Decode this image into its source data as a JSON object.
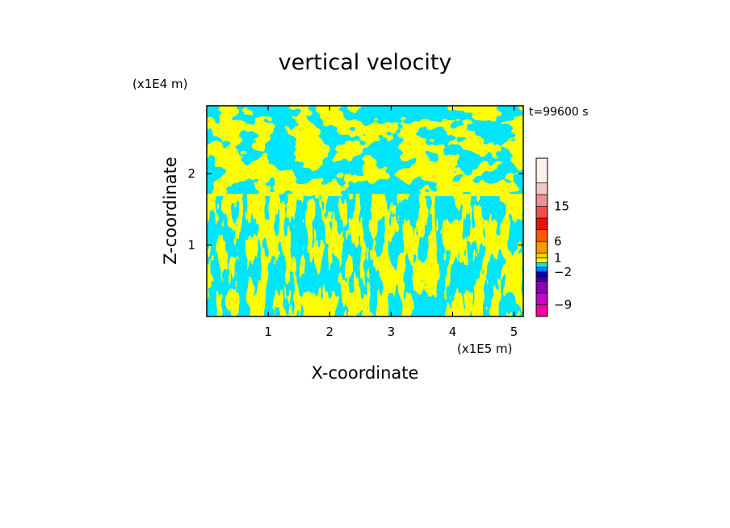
{
  "chart_data": {
    "type": "heatmap",
    "title": "vertical velocity",
    "xlabel": "X-coordinate",
    "ylabel": "Z-coordinate",
    "x_unit": "(x1E5 m)",
    "y_unit": "(x1E4 m)",
    "time_label": "t=99600 s",
    "xlim": [
      0,
      5.15
    ],
    "ylim": [
      0,
      2.95
    ],
    "x_ticks": [
      1,
      2,
      3,
      4,
      5
    ],
    "y_ticks": [
      1,
      2
    ],
    "field": {
      "description_values": "sign of vertical velocity",
      "positive_color": "#ffff00",
      "negative_color": "#00e5ff",
      "dominant_levels": [
        "0 to 1",
        "-1 to 0"
      ]
    },
    "colorbar": {
      "levels": [
        {
          "color": "#ff00a0"
        },
        {
          "color": "#c800c8"
        },
        {
          "color": "#8c00b4"
        },
        {
          "color": "#3c00a0"
        },
        {
          "color": "#0000cc"
        },
        {
          "color": "#0078ff"
        },
        {
          "color": "#00e5ff"
        },
        {
          "color": "#ffff00"
        },
        {
          "color": "#ffd200"
        },
        {
          "color": "#ff9600"
        },
        {
          "color": "#ff5a00"
        },
        {
          "color": "#e61400"
        },
        {
          "color": "#f05050"
        },
        {
          "color": "#f09090"
        },
        {
          "color": "#f5c8c8"
        },
        {
          "color": "#fff0f0"
        }
      ],
      "labels": [
        {
          "text": "15",
          "value": 15
        },
        {
          "text": "6",
          "value": 6
        },
        {
          "text": "1",
          "value": 1
        },
        {
          "text": "−2",
          "value": -2
        },
        {
          "text": "−9",
          "value": -9
        }
      ]
    }
  }
}
